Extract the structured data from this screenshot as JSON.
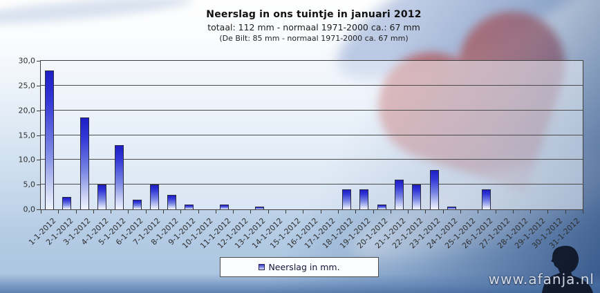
{
  "chart_data": {
    "type": "bar",
    "title": "Neerslag in ons tuintje in januari 2012",
    "subtitle": "totaal: 112 mm  - normaal  1971-2000  ca.: 67 mm",
    "note": "(De Bilt: 85 mm - normaal  1971-2000 ca. 67 mm)",
    "categories": [
      "1-1-2012",
      "2-1-2012",
      "3-1-2012",
      "4-1-2012",
      "5-1-2012",
      "6-1-2012",
      "7-1-2012",
      "8-1-2012",
      "9-1-2012",
      "10-1-2012",
      "11-1-2012",
      "12-1-2012",
      "13-1-2012",
      "14-1-2012",
      "15-1-2012",
      "16-1-2012",
      "17-1-2012",
      "18-1-2012",
      "19-1-2012",
      "20-1-2012",
      "21-1-2012",
      "22-1-2012",
      "23-1-2012",
      "24-1-2012",
      "25-1-2012",
      "26-1-2012",
      "27-1-2012",
      "28-1-2012",
      "29-1-2012",
      "30-1-2012",
      "31-1-2012"
    ],
    "series": [
      {
        "name": "Neerslag in mm.",
        "values": [
          28,
          2.5,
          18.5,
          5,
          13,
          2,
          5,
          3,
          1,
          0,
          1,
          0,
          0.5,
          0,
          0,
          0,
          0,
          4,
          4,
          1,
          6,
          5,
          8,
          0.5,
          0,
          4,
          0,
          0,
          0,
          0,
          0
        ]
      }
    ],
    "ylim": [
      0,
      30
    ],
    "ytick_step": 5,
    "ytick_labels": [
      "0,0",
      "5,0",
      "10,0",
      "15,0",
      "20,0",
      "25,0",
      "30,0"
    ],
    "grid": true,
    "legend_position": "bottom-center"
  },
  "watermark": {
    "text": "www.afanja.nl"
  },
  "colors": {
    "bar_top": "#1e1ec4",
    "bar_bottom": "#f2f5fe",
    "heart": "#c25f5d",
    "axis": "#3f3f3f",
    "deep_blue_corner": "#2a5a9a"
  }
}
